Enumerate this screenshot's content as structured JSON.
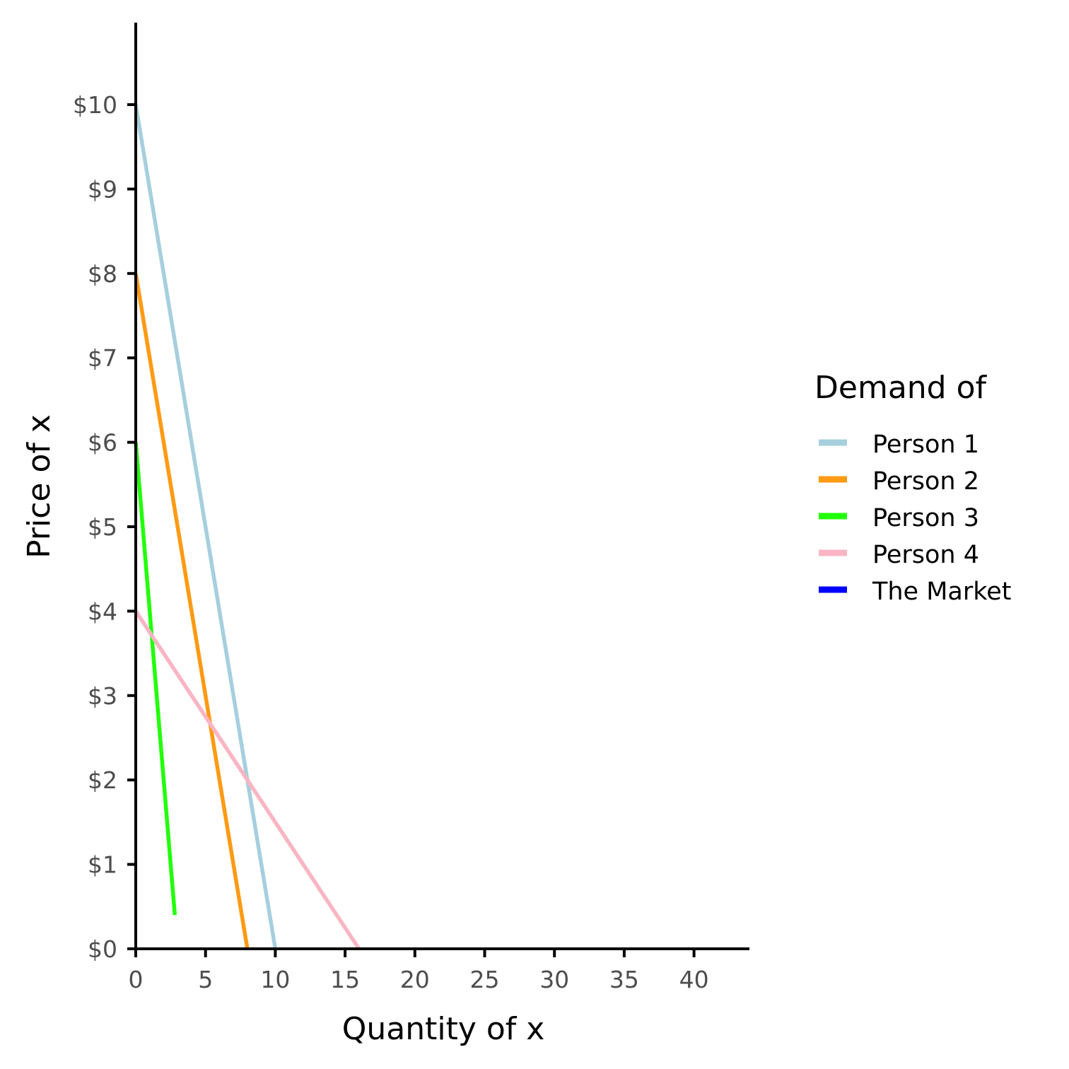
{
  "chart_data": {
    "type": "line",
    "xlabel": "Quantity of x",
    "ylabel": "Price of x",
    "xlim": [
      0,
      44
    ],
    "ylim": [
      0,
      11
    ],
    "x_ticks": [
      0,
      5,
      10,
      15,
      20,
      25,
      30,
      35,
      40
    ],
    "x_tick_labels": [
      "0",
      "5",
      "10",
      "15",
      "20",
      "25",
      "30",
      "35",
      "40"
    ],
    "y_ticks": [
      0,
      1,
      2,
      3,
      4,
      5,
      6,
      7,
      8,
      9,
      10
    ],
    "y_tick_labels": [
      "$0",
      "$1",
      "$2",
      "$3",
      "$4",
      "$5",
      "$6",
      "$7",
      "$8",
      "$9",
      "$10"
    ],
    "grid": false,
    "legend": {
      "title": "Demand of",
      "placement": "right"
    },
    "series": [
      {
        "name": "Person 1",
        "color": "#a6cfde",
        "points": [
          [
            0,
            10
          ],
          [
            10,
            0
          ]
        ]
      },
      {
        "name": "Person 2",
        "color": "#ff9a14",
        "points": [
          [
            0,
            8
          ],
          [
            8,
            0
          ]
        ]
      },
      {
        "name": "Person 3",
        "color": "#22ff0a",
        "points": [
          [
            0,
            6
          ],
          [
            2.8,
            0.4
          ]
        ]
      },
      {
        "name": "Person 4",
        "color": "#f9b5c3",
        "points": [
          [
            0,
            4
          ],
          [
            16,
            0
          ]
        ]
      },
      {
        "name": "The Market",
        "color": "#0000ff",
        "points": []
      }
    ]
  }
}
